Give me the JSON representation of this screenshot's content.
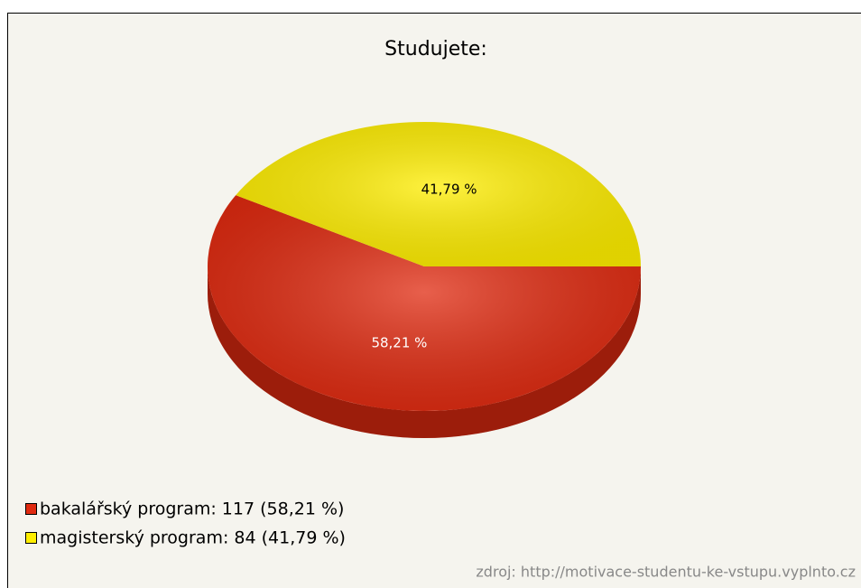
{
  "chart_data": {
    "type": "pie",
    "title": "Studujete:",
    "categories": [
      "bakalářský program",
      "magisterský program"
    ],
    "values": [
      58.21,
      41.79
    ],
    "value_labels": [
      "58,21 %",
      "41,79 %"
    ],
    "colors": [
      "#e02a10",
      "#ffee00"
    ],
    "legend": [
      "bakalářský program: 117 (58,21 %)",
      "magisterský program: 84 (41,79 %)"
    ],
    "source": "zdroj: http://motivace-studentu-ke-vstupu.vyplnto.cz"
  }
}
